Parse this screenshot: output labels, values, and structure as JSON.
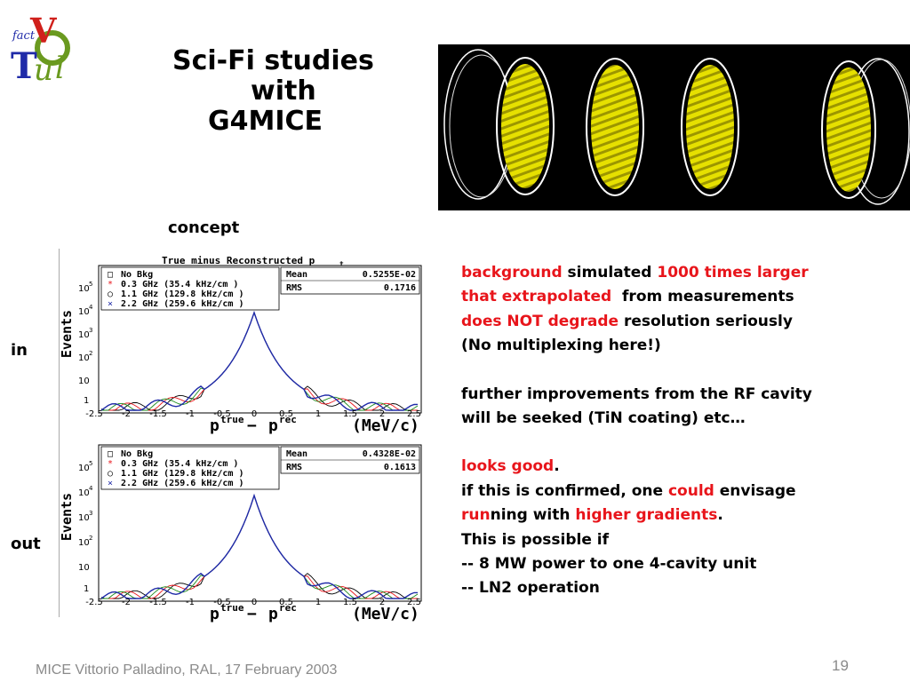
{
  "slide": {
    "title_lines": [
      "Sci-Fi studies",
      "with",
      "G4MICE"
    ],
    "concept_label": "concept",
    "in_label": "in",
    "out_label": "out",
    "footer": "MICE Vittorio Palladino,  RAL, 17 February 2003",
    "page_number": "19"
  },
  "logo": {
    "letters": [
      "fact",
      "V",
      "T",
      "u",
      "l"
    ],
    "colors": {
      "red": "#d0201b",
      "blue": "#1f2aa8",
      "green": "#6a9a1f"
    }
  },
  "render_colors": {
    "background": "#000000",
    "disk": "#e6e000",
    "disk_stripe": "#9c9600",
    "ring": "#ffffff"
  },
  "histograms": [
    {
      "id": "in",
      "title": "True minus Reconstructed p",
      "title_sub": "t",
      "ylabel": "Events",
      "legend": [
        {
          "marker": "□",
          "text": "No Bkg",
          "color": "#000000"
        },
        {
          "marker": "*",
          "text": "0.3 GHz (35.4 kHz/cm )",
          "color": "#e8151b"
        },
        {
          "marker": "○",
          "text": "1.1 GHz (129.8 kHz/cm )",
          "color": "#000000"
        },
        {
          "marker": "×",
          "text": "2.2 GHz (259.6 kHz/cm )",
          "color": "#1f2aa8"
        }
      ],
      "stats": {
        "mean_label": "Mean",
        "mean_value": "0.5255E-02",
        "rms_label": "RMS",
        "rms_value": "0.1716"
      },
      "yticks": [
        "10",
        "10",
        "10",
        "10",
        "10",
        "1"
      ],
      "yexps": [
        "5",
        "4",
        "3",
        "2",
        ""
      ],
      "xticks": [
        "-2.5",
        "-2",
        "-1.5",
        "-1",
        "-0.5",
        "0",
        "0.5",
        "1",
        "1.5",
        "2",
        "2.5"
      ],
      "xlabel": "p",
      "xlabel_tail": "(MeV/c)"
    },
    {
      "id": "out",
      "title": "",
      "title_sub": "",
      "ylabel": "Events",
      "legend": [
        {
          "marker": "□",
          "text": "No Bkg",
          "color": "#000000"
        },
        {
          "marker": "*",
          "text": "0.3 GHz (35.4 kHz/cm )",
          "color": "#e8151b"
        },
        {
          "marker": "○",
          "text": "1.1 GHz (129.8 kHz/cm )",
          "color": "#000000"
        },
        {
          "marker": "×",
          "text": "2.2 GHz (259.6 kHz/cm )",
          "color": "#1f2aa8"
        }
      ],
      "stats": {
        "mean_label": "Mean",
        "mean_value": "0.4328E-02",
        "rms_label": "RMS",
        "rms_value": "0.1613"
      },
      "yticks": [
        "10",
        "10",
        "10",
        "10",
        "10",
        "1"
      ],
      "yexps": [
        "5",
        "4",
        "3",
        "2",
        ""
      ],
      "xticks": [
        "-2.5",
        "-2",
        "-1.5",
        "-1",
        "-0.5",
        "0",
        "0.5",
        "1",
        "1.5",
        "2",
        "2.5"
      ],
      "xlabel": "p",
      "xlabel_tail": "(MeV/c)"
    }
  ],
  "notes": {
    "p1": {
      "a": "background",
      "b": " simulated ",
      "c": "1000 times larger",
      "d": "that extrapolated",
      "e": "  from measurements",
      "f": "does NOT degrade",
      "g": " resolution seriously",
      "h": "(No multiplexing here!)"
    },
    "p2": {
      "a": "further improvements from the RF cavity",
      "b": "will be seeked (TiN coating) etc…"
    },
    "p3": {
      "a": "looks good",
      "b": ".",
      "c": "if this is confirmed, one ",
      "d": "could",
      "e": " envisage",
      "f": "run",
      "g": "ning with ",
      "h": "higher gradients",
      "i": ".",
      "j": "This is possible if",
      "k": "-- 8 MW power to one 4-cavity unit",
      "l": "-- LN2 operation"
    }
  }
}
